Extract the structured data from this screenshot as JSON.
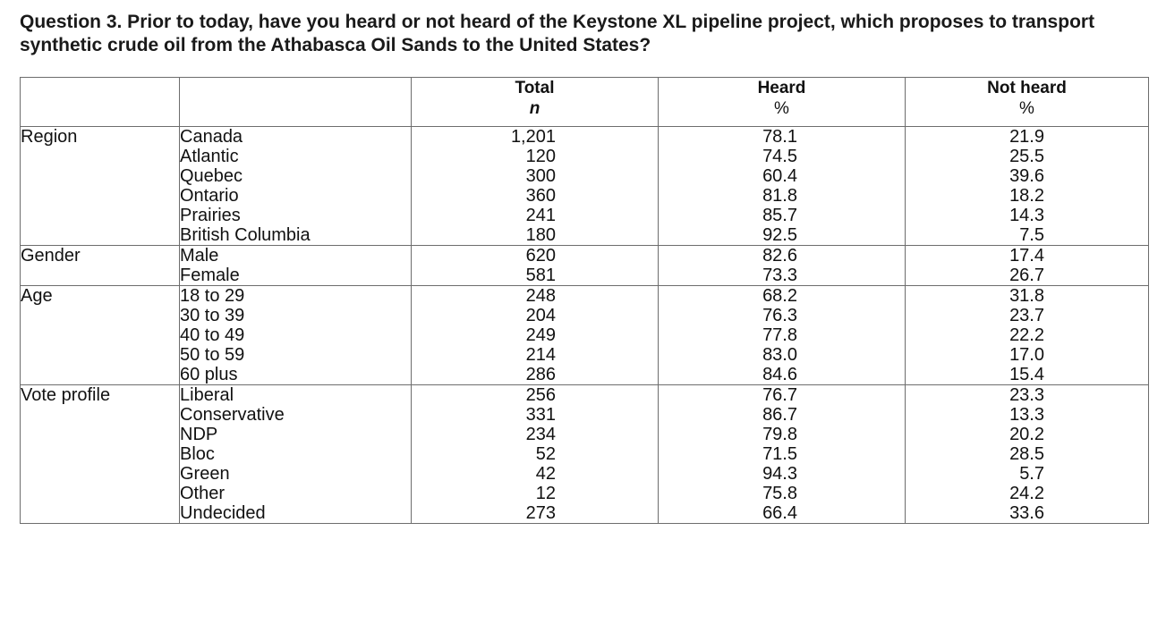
{
  "question": "Question 3. Prior to today, have you heard or not heard of the Keystone XL pipeline project, which proposes to transport synthetic crude oil from the Athabasca Oil Sands to the United States?",
  "headers": {
    "total": "Total",
    "total_unit": "n",
    "heard": "Heard",
    "heard_unit": "%",
    "not_heard": "Not heard",
    "not_heard_unit": "%"
  },
  "groups": [
    {
      "category": "Region",
      "rows": [
        {
          "label": "Canada",
          "total": "1,201",
          "heard": "78.1",
          "not_heard": "21.9"
        },
        {
          "label": "Atlantic",
          "total": "120",
          "heard": "74.5",
          "not_heard": "25.5"
        },
        {
          "label": "Quebec",
          "total": "300",
          "heard": "60.4",
          "not_heard": "39.6"
        },
        {
          "label": "Ontario",
          "total": "360",
          "heard": "81.8",
          "not_heard": "18.2"
        },
        {
          "label": "Prairies",
          "total": "241",
          "heard": "85.7",
          "not_heard": "14.3"
        },
        {
          "label": "British Columbia",
          "total": "180",
          "heard": "92.5",
          "not_heard": "7.5"
        }
      ]
    },
    {
      "category": "Gender",
      "rows": [
        {
          "label": "Male",
          "total": "620",
          "heard": "82.6",
          "not_heard": "17.4"
        },
        {
          "label": "Female",
          "total": "581",
          "heard": "73.3",
          "not_heard": "26.7"
        }
      ]
    },
    {
      "category": "Age",
      "rows": [
        {
          "label": "18 to 29",
          "total": "248",
          "heard": "68.2",
          "not_heard": "31.8"
        },
        {
          "label": "30 to 39",
          "total": "204",
          "heard": "76.3",
          "not_heard": "23.7"
        },
        {
          "label": "40 to 49",
          "total": "249",
          "heard": "77.8",
          "not_heard": "22.2"
        },
        {
          "label": "50 to 59",
          "total": "214",
          "heard": "83.0",
          "not_heard": "17.0"
        },
        {
          "label": "60 plus",
          "total": "286",
          "heard": "84.6",
          "not_heard": "15.4"
        }
      ]
    },
    {
      "category": "Vote profile",
      "rows": [
        {
          "label": "Liberal",
          "total": "256",
          "heard": "76.7",
          "not_heard": "23.3"
        },
        {
          "label": "Conservative",
          "total": "331",
          "heard": "86.7",
          "not_heard": "13.3"
        },
        {
          "label": "NDP",
          "total": "234",
          "heard": "79.8",
          "not_heard": "20.2"
        },
        {
          "label": "Bloc",
          "total": "52",
          "heard": "71.5",
          "not_heard": "28.5"
        },
        {
          "label": "Green",
          "total": "42",
          "heard": "94.3",
          "not_heard": "5.7"
        },
        {
          "label": "Other",
          "total": "12",
          "heard": "75.8",
          "not_heard": "24.2"
        },
        {
          "label": "Undecided",
          "total": "273",
          "heard": "66.4",
          "not_heard": "33.6"
        }
      ]
    }
  ]
}
